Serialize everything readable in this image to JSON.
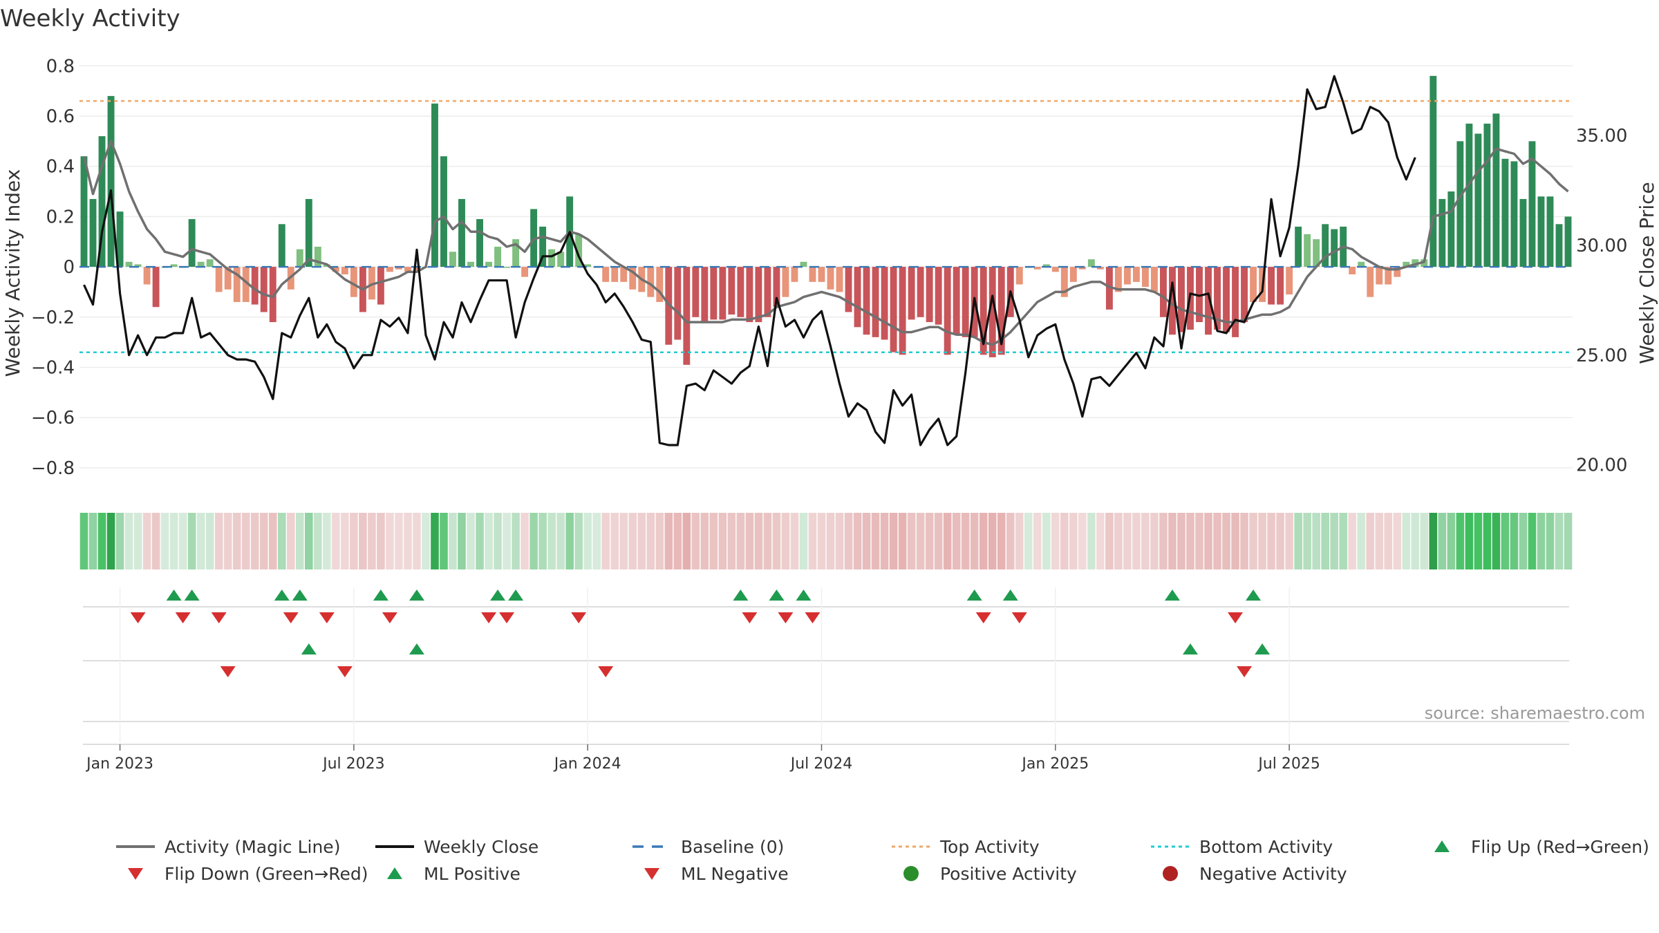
{
  "chart_data": {
    "type": "bar",
    "title": "Weekly Activity",
    "ylabel_left": "Weekly Activity Index",
    "ylabel_right": "Weekly Close Price",
    "y_left_range": [
      -0.88,
      0.82
    ],
    "y_left_ticks": [
      "0.8",
      "0.6",
      "0.4",
      "0.2",
      "0",
      "−0.2",
      "−0.4",
      "−0.6",
      "−0.8"
    ],
    "y_right_range": [
      18.95,
      38.4
    ],
    "y_right_ticks": [
      "35.00",
      "30.00",
      "25.00",
      "20.00"
    ],
    "x_ticks": [
      "Jan 2023",
      "Jul 2023",
      "Jan 2024",
      "Jul 2024",
      "Jan 2025",
      "Jul 2025"
    ],
    "x_tick_weeks": [
      4,
      30,
      56,
      82,
      108,
      134
    ],
    "top_activity": 0.66,
    "bottom_activity": -0.34,
    "source": "source: sharemaestro.com",
    "colors": {
      "strong_green": "#2e8b57",
      "light_green": "#7fbf7f",
      "strong_red": "#c8555a",
      "light_red": "#e8957a",
      "magic_line": "#707070",
      "close": "#111111",
      "baseline": "#3a78b5",
      "top": "#f0a868",
      "bottom": "#22cbd0",
      "flip_up": "#1f9b4f",
      "flip_down": "#d62f2f"
    },
    "activity": [
      0.44,
      0.27,
      0.52,
      0.68,
      0.22,
      0.02,
      0.01,
      -0.07,
      -0.16,
      0,
      0.01,
      0,
      0.19,
      0.02,
      0.03,
      -0.1,
      -0.09,
      -0.14,
      -0.14,
      -0.15,
      -0.18,
      -0.22,
      0.17,
      -0.09,
      0.07,
      0.27,
      0.08,
      0.01,
      -0.02,
      -0.03,
      -0.12,
      -0.18,
      -0.13,
      -0.15,
      -0.02,
      -0.01,
      -0.02,
      -0.02,
      0,
      0.65,
      0.44,
      0.06,
      0.27,
      0.02,
      0.19,
      0.02,
      0.08,
      0,
      0.11,
      -0.04,
      0.23,
      0.16,
      0.07,
      0.06,
      0.28,
      0.13,
      0.01,
      0,
      -0.06,
      -0.06,
      -0.06,
      -0.09,
      -0.1,
      -0.12,
      -0.14,
      -0.31,
      -0.29,
      -0.39,
      -0.2,
      -0.22,
      -0.21,
      -0.21,
      -0.19,
      -0.2,
      -0.22,
      -0.22,
      -0.2,
      -0.16,
      -0.12,
      -0.06,
      0.02,
      -0.06,
      -0.06,
      -0.09,
      -0.1,
      -0.18,
      -0.24,
      -0.27,
      -0.28,
      -0.29,
      -0.34,
      -0.35,
      -0.21,
      -0.2,
      -0.22,
      -0.23,
      -0.35,
      -0.27,
      -0.28,
      -0.28,
      -0.35,
      -0.36,
      -0.35,
      -0.2,
      -0.07,
      0,
      -0.01,
      0.01,
      -0.02,
      -0.12,
      -0.06,
      -0.01,
      0.03,
      -0.01,
      -0.17,
      -0.1,
      -0.07,
      -0.06,
      -0.08,
      -0.1,
      -0.2,
      -0.27,
      -0.26,
      -0.25,
      -0.22,
      -0.27,
      -0.25,
      -0.26,
      -0.28,
      -0.22,
      -0.14,
      -0.14,
      -0.15,
      -0.15,
      -0.11,
      0.16,
      0.13,
      0.11,
      0.17,
      0.15,
      0.16,
      -0.03,
      0.02,
      -0.12,
      -0.07,
      -0.07,
      -0.04,
      0.02,
      0.03,
      0.03,
      0.76,
      0.27,
      0.3,
      0.5,
      0.57,
      0.53,
      0.57,
      0.61,
      0.43,
      0.42,
      0.27,
      0.5,
      0.28,
      0.28,
      0.17,
      0.2
    ],
    "magic_line": [
      0.44,
      0.29,
      0.4,
      0.5,
      0.41,
      0.3,
      0.22,
      0.15,
      0.11,
      0.06,
      0.05,
      0.04,
      0.07,
      0.06,
      0.05,
      0.02,
      -0.01,
      -0.03,
      -0.06,
      -0.09,
      -0.11,
      -0.12,
      -0.07,
      -0.04,
      -0.01,
      0.03,
      0.02,
      0.01,
      -0.02,
      -0.05,
      -0.07,
      -0.09,
      -0.07,
      -0.06,
      -0.05,
      -0.04,
      -0.02,
      -0.02,
      0,
      0.18,
      0.2,
      0.15,
      0.18,
      0.14,
      0.14,
      0.12,
      0.11,
      0.08,
      0.09,
      0.06,
      0.11,
      0.12,
      0.11,
      0.1,
      0.14,
      0.13,
      0.11,
      0.08,
      0.05,
      0.02,
      0,
      -0.02,
      -0.05,
      -0.07,
      -0.1,
      -0.15,
      -0.18,
      -0.22,
      -0.22,
      -0.22,
      -0.22,
      -0.22,
      -0.21,
      -0.21,
      -0.21,
      -0.2,
      -0.19,
      -0.16,
      -0.15,
      -0.14,
      -0.12,
      -0.11,
      -0.1,
      -0.11,
      -0.12,
      -0.14,
      -0.16,
      -0.18,
      -0.2,
      -0.22,
      -0.24,
      -0.26,
      -0.26,
      -0.25,
      -0.24,
      -0.24,
      -0.26,
      -0.27,
      -0.27,
      -0.28,
      -0.3,
      -0.31,
      -0.29,
      -0.26,
      -0.22,
      -0.18,
      -0.14,
      -0.12,
      -0.1,
      -0.1,
      -0.08,
      -0.07,
      -0.06,
      -0.06,
      -0.08,
      -0.09,
      -0.09,
      -0.09,
      -0.09,
      -0.1,
      -0.12,
      -0.15,
      -0.17,
      -0.18,
      -0.19,
      -0.2,
      -0.21,
      -0.22,
      -0.22,
      -0.21,
      -0.2,
      -0.19,
      -0.19,
      -0.18,
      -0.16,
      -0.1,
      -0.04,
      0,
      0.04,
      0.06,
      0.08,
      0.07,
      0.04,
      0.02,
      0,
      -0.01,
      -0.01,
      0,
      0.01,
      0.02,
      0.2,
      0.21,
      0.22,
      0.28,
      0.33,
      0.38,
      0.42,
      0.47,
      0.46,
      0.45,
      0.41,
      0.43,
      0.4,
      0.37,
      0.33,
      0.3
    ],
    "weekly_close": [
      28.2,
      27.3,
      30.6,
      32.5,
      27.8,
      25.0,
      25.9,
      25.0,
      25.8,
      25.8,
      26.0,
      26.0,
      27.6,
      25.8,
      26.0,
      25.5,
      25.0,
      24.8,
      24.8,
      24.7,
      24.0,
      23.0,
      26.0,
      25.8,
      26.8,
      27.6,
      25.8,
      26.4,
      25.6,
      25.3,
      24.4,
      25.0,
      25.0,
      26.6,
      26.3,
      26.7,
      26.0,
      29.8,
      25.9,
      24.8,
      26.5,
      25.8,
      27.4,
      26.5,
      27.5,
      28.4,
      28.4,
      28.4,
      25.8,
      27.4,
      28.5,
      29.5,
      29.5,
      29.7,
      30.6,
      29.5,
      28.7,
      28.2,
      27.4,
      27.8,
      27.2,
      26.5,
      25.7,
      25.6,
      21.0,
      20.9,
      20.9,
      23.6,
      23.7,
      23.4,
      24.3,
      24.0,
      23.7,
      24.2,
      24.5,
      26.3,
      24.5,
      27.6,
      26.3,
      26.6,
      25.8,
      26.6,
      27.0,
      25.4,
      23.7,
      22.2,
      22.8,
      22.5,
      21.5,
      21.0,
      23.4,
      22.7,
      23.2,
      20.9,
      21.6,
      22.1,
      20.9,
      21.3,
      24.2,
      27.6,
      25.5,
      27.7,
      25.5,
      27.9,
      26.6,
      24.9,
      25.9,
      26.2,
      26.4,
      24.8,
      23.7,
      22.2,
      23.9,
      24.0,
      23.6,
      24.1,
      24.6,
      25.1,
      24.4,
      25.8,
      25.4,
      28.3,
      25.3,
      27.8,
      27.7,
      27.8,
      26.1,
      26.0,
      26.6,
      26.5,
      27.4,
      27.9,
      32.1,
      29.5,
      30.8,
      33.6,
      37.1,
      36.2,
      36.3,
      37.7,
      36.5,
      35.1,
      35.3,
      36.3,
      36.1,
      35.6,
      34.0,
      33.0,
      34.0
    ],
    "flip_up_row1": [
      10,
      12,
      22,
      24,
      33,
      37,
      46,
      48,
      73,
      77,
      80,
      99,
      103,
      121,
      130
    ],
    "flip_down_row1": [
      6,
      11,
      15,
      23,
      27,
      34,
      45,
      47,
      55,
      74,
      78,
      81,
      100,
      104,
      128
    ],
    "ml_positive_row2": [
      25,
      37,
      123,
      131
    ],
    "ml_negative_row2": [
      16,
      29,
      58,
      129
    ],
    "legend": [
      "Activity (Magic Line)",
      "Weekly Close",
      "Baseline (0)",
      "Top Activity",
      "Bottom Activity",
      "Flip Up (Red→Green)",
      "Flip Down (Green→Red)",
      "ML Positive",
      "ML Negative",
      "Positive Activity",
      "Negative Activity"
    ]
  }
}
